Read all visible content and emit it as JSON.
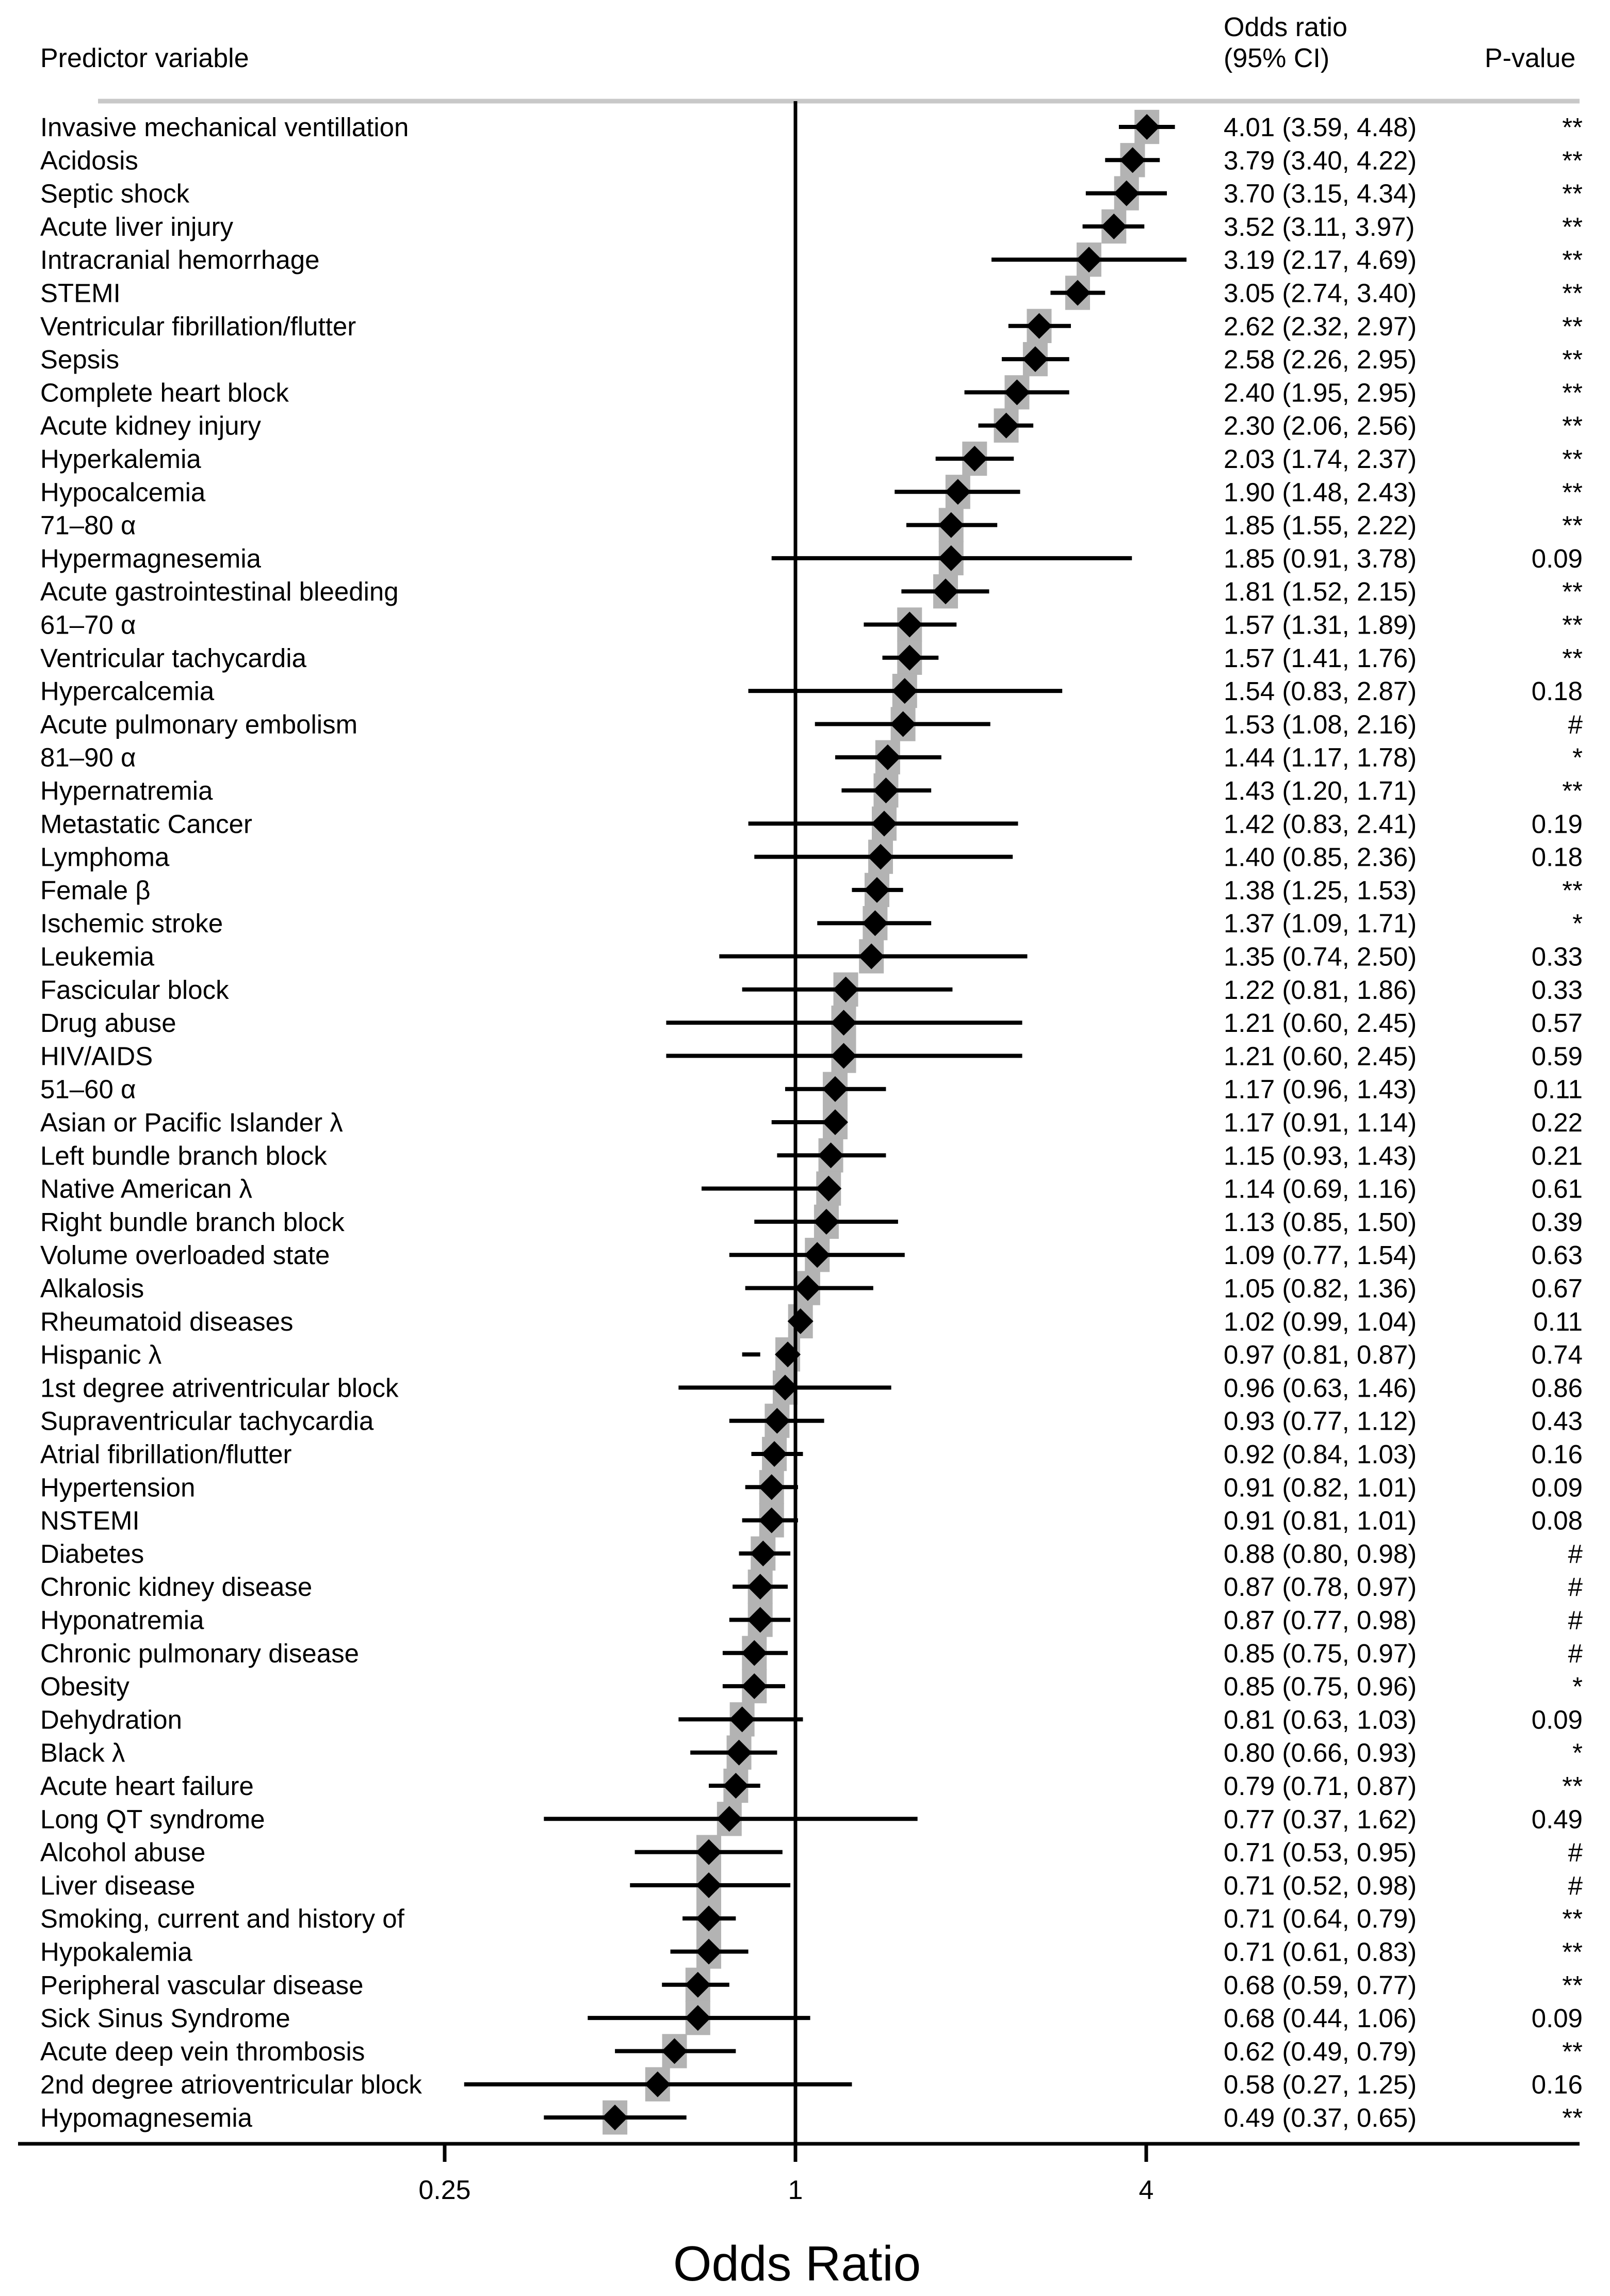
{
  "headers": {
    "predictor": "Predictor variable",
    "or_line1": "Odds ratio",
    "or_line2": "(95% CI)",
    "pvalue": "P-value"
  },
  "chart_data": {
    "type": "forest",
    "xlabel": "Odds Ratio",
    "x_scale": "log2",
    "xlim": [
      0.125,
      16
    ],
    "x_ticks": [
      0.25,
      1,
      4
    ],
    "x_tick_labels": [
      "0.25",
      "1",
      "4"
    ],
    "reference_line": 1,
    "colors": {
      "marker": "#000000",
      "ci_line": "#000000",
      "band": "#b3b3b3",
      "separator": "#c8c8c8"
    },
    "rows": [
      {
        "label": "Invasive mechanical ventillation",
        "or": 4.01,
        "lo": 3.59,
        "hi": 4.48,
        "ci_text": "4.01 (3.59, 4.48)",
        "p": "**"
      },
      {
        "label": "Acidosis",
        "or": 3.79,
        "lo": 3.4,
        "hi": 4.22,
        "ci_text": "3.79 (3.40, 4.22)",
        "p": "**"
      },
      {
        "label": "Septic shock",
        "or": 3.7,
        "lo": 3.15,
        "hi": 4.34,
        "ci_text": "3.70 (3.15, 4.34)",
        "p": "**"
      },
      {
        "label": "Acute liver injury",
        "or": 3.52,
        "lo": 3.11,
        "hi": 3.97,
        "ci_text": "3.52 (3.11, 3.97)",
        "p": "**"
      },
      {
        "label": "Intracranial hemorrhage",
        "or": 3.19,
        "lo": 2.17,
        "hi": 4.69,
        "ci_text": "3.19 (2.17, 4.69)",
        "p": "**"
      },
      {
        "label": "STEMI",
        "or": 3.05,
        "lo": 2.74,
        "hi": 3.4,
        "ci_text": "3.05 (2.74, 3.40)",
        "p": "**"
      },
      {
        "label": "Ventricular fibrillation/flutter",
        "or": 2.62,
        "lo": 2.32,
        "hi": 2.97,
        "ci_text": "2.62 (2.32, 2.97)",
        "p": "**"
      },
      {
        "label": "Sepsis",
        "or": 2.58,
        "lo": 2.26,
        "hi": 2.95,
        "ci_text": "2.58 (2.26, 2.95)",
        "p": "**"
      },
      {
        "label": "Complete heart block",
        "or": 2.4,
        "lo": 1.95,
        "hi": 2.95,
        "ci_text": "2.40 (1.95, 2.95)",
        "p": "**"
      },
      {
        "label": "Acute kidney injury",
        "or": 2.3,
        "lo": 2.06,
        "hi": 2.56,
        "ci_text": "2.30 (2.06, 2.56)",
        "p": "**"
      },
      {
        "label": "Hyperkalemia",
        "or": 2.03,
        "lo": 1.74,
        "hi": 2.37,
        "ci_text": "2.03 (1.74, 2.37)",
        "p": "**"
      },
      {
        "label": "Hypocalcemia",
        "or": 1.9,
        "lo": 1.48,
        "hi": 2.43,
        "ci_text": "1.90 (1.48, 2.43)",
        "p": "**"
      },
      {
        "label": "71–80 α",
        "or": 1.85,
        "lo": 1.55,
        "hi": 2.22,
        "ci_text": "1.85 (1.55, 2.22)",
        "p": "**"
      },
      {
        "label": "Hypermagnesemia",
        "or": 1.85,
        "lo": 0.91,
        "hi": 3.78,
        "ci_text": "1.85 (0.91, 3.78)",
        "p": "0.09"
      },
      {
        "label": "Acute gastrointestinal bleeding",
        "or": 1.81,
        "lo": 1.52,
        "hi": 2.15,
        "ci_text": "1.81 (1.52, 2.15)",
        "p": "**"
      },
      {
        "label": "61–70 α",
        "or": 1.57,
        "lo": 1.31,
        "hi": 1.89,
        "ci_text": "1.57 (1.31, 1.89)",
        "p": "**"
      },
      {
        "label": "Ventricular tachycardia",
        "or": 1.57,
        "lo": 1.41,
        "hi": 1.76,
        "ci_text": "1.57 (1.41, 1.76)",
        "p": "**"
      },
      {
        "label": "Hypercalcemia",
        "or": 1.54,
        "lo": 0.83,
        "hi": 2.87,
        "ci_text": "1.54 (0.83, 2.87)",
        "p": "0.18"
      },
      {
        "label": "Acute pulmonary embolism",
        "or": 1.53,
        "lo": 1.08,
        "hi": 2.16,
        "ci_text": "1.53 (1.08, 2.16)",
        "p": "#"
      },
      {
        "label": "81–90 α",
        "or": 1.44,
        "lo": 1.17,
        "hi": 1.78,
        "ci_text": "1.44 (1.17, 1.78)",
        "p": "*"
      },
      {
        "label": "Hypernatremia",
        "or": 1.43,
        "lo": 1.2,
        "hi": 1.71,
        "ci_text": "1.43 (1.20, 1.71)",
        "p": "**"
      },
      {
        "label": "Metastatic Cancer",
        "or": 1.42,
        "lo": 0.83,
        "hi": 2.41,
        "ci_text": "1.42 (0.83, 2.41)",
        "p": "0.19"
      },
      {
        "label": "Lymphoma",
        "or": 1.4,
        "lo": 0.85,
        "hi": 2.36,
        "ci_text": "1.40 (0.85, 2.36)",
        "p": "0.18"
      },
      {
        "label": "Female β",
        "or": 1.38,
        "lo": 1.25,
        "hi": 1.53,
        "ci_text": "1.38 (1.25, 1.53)",
        "p": "**"
      },
      {
        "label": "Ischemic stroke",
        "or": 1.37,
        "lo": 1.09,
        "hi": 1.71,
        "ci_text": "1.37 (1.09, 1.71)",
        "p": "*"
      },
      {
        "label": "Leukemia",
        "or": 1.35,
        "lo": 0.74,
        "hi": 2.5,
        "ci_text": "1.35 (0.74, 2.50)",
        "p": "0.33"
      },
      {
        "label": "Fascicular block",
        "or": 1.22,
        "lo": 0.81,
        "hi": 1.86,
        "ci_text": "1.22 (0.81, 1.86)",
        "p": "0.33"
      },
      {
        "label": "Drug abuse",
        "or": 1.21,
        "lo": 0.6,
        "hi": 2.45,
        "ci_text": "1.21 (0.60, 2.45)",
        "p": "0.57"
      },
      {
        "label": "HIV/AIDS",
        "or": 1.21,
        "lo": 0.6,
        "hi": 2.45,
        "ci_text": "1.21 (0.60, 2.45)",
        "p": "0.59"
      },
      {
        "label": "51–60 α",
        "or": 1.17,
        "lo": 0.96,
        "hi": 1.43,
        "ci_text": "1.17 (0.96, 1.43)",
        "p": "0.11"
      },
      {
        "label": "Asian or Pacific Islander  λ",
        "or": 1.17,
        "lo": 0.91,
        "hi": 1.14,
        "ci_text": "1.17 (0.91, 1.14)",
        "p": "0.22"
      },
      {
        "label": "Left bundle branch block",
        "or": 1.15,
        "lo": 0.93,
        "hi": 1.43,
        "ci_text": "1.15 (0.93, 1.43)",
        "p": "0.21"
      },
      {
        "label": "Native American  λ",
        "or": 1.14,
        "lo": 0.69,
        "hi": 1.16,
        "ci_text": "1.14 (0.69, 1.16)",
        "p": "0.61"
      },
      {
        "label": "Right bundle branch block",
        "or": 1.13,
        "lo": 0.85,
        "hi": 1.5,
        "ci_text": "1.13 (0.85, 1.50)",
        "p": "0.39"
      },
      {
        "label": "Volume overloaded state",
        "or": 1.09,
        "lo": 0.77,
        "hi": 1.54,
        "ci_text": "1.09 (0.77, 1.54)",
        "p": "0.63"
      },
      {
        "label": "Alkalosis",
        "or": 1.05,
        "lo": 0.82,
        "hi": 1.36,
        "ci_text": "1.05 (0.82, 1.36)",
        "p": "0.67"
      },
      {
        "label": "Rheumatoid diseases",
        "or": 1.02,
        "lo": 0.99,
        "hi": 1.04,
        "ci_text": "1.02 (0.99, 1.04)",
        "p": "0.11"
      },
      {
        "label": "Hispanic  λ",
        "or": 0.97,
        "lo": 0.81,
        "hi": 0.87,
        "ci_text": "0.97 (0.81, 0.87)",
        "p": "0.74"
      },
      {
        "label": "1st degree atriventricular  block",
        "or": 0.96,
        "lo": 0.63,
        "hi": 1.46,
        "ci_text": "0.96 (0.63, 1.46)",
        "p": "0.86"
      },
      {
        "label": "Supraventricular tachycardia",
        "or": 0.93,
        "lo": 0.77,
        "hi": 1.12,
        "ci_text": "0.93 (0.77, 1.12)",
        "p": "0.43"
      },
      {
        "label": "Atrial fibrillation/flutter",
        "or": 0.92,
        "lo": 0.84,
        "hi": 1.03,
        "ci_text": "0.92 (0.84, 1.03)",
        "p": "0.16"
      },
      {
        "label": "Hypertension",
        "or": 0.91,
        "lo": 0.82,
        "hi": 1.01,
        "ci_text": "0.91 (0.82, 1.01)",
        "p": "0.09"
      },
      {
        "label": "NSTEMI",
        "or": 0.91,
        "lo": 0.81,
        "hi": 1.01,
        "ci_text": "0.91 (0.81, 1.01)",
        "p": "0.08"
      },
      {
        "label": "Diabetes",
        "or": 0.88,
        "lo": 0.8,
        "hi": 0.98,
        "ci_text": "0.88 (0.80, 0.98)",
        "p": "#"
      },
      {
        "label": "Chronic kidney disease",
        "or": 0.87,
        "lo": 0.78,
        "hi": 0.97,
        "ci_text": "0.87 (0.78, 0.97)",
        "p": "#"
      },
      {
        "label": "Hyponatremia",
        "or": 0.87,
        "lo": 0.77,
        "hi": 0.98,
        "ci_text": "0.87 (0.77, 0.98)",
        "p": "#"
      },
      {
        "label": "Chronic pulmonary disease",
        "or": 0.85,
        "lo": 0.75,
        "hi": 0.97,
        "ci_text": "0.85 (0.75, 0.97)",
        "p": "#"
      },
      {
        "label": "Obesity",
        "or": 0.85,
        "lo": 0.75,
        "hi": 0.96,
        "ci_text": "0.85 (0.75, 0.96)",
        "p": "*"
      },
      {
        "label": "Dehydration",
        "or": 0.81,
        "lo": 0.63,
        "hi": 1.03,
        "ci_text": "0.81 (0.63, 1.03)",
        "p": "0.09"
      },
      {
        "label": "Black  λ",
        "or": 0.8,
        "lo": 0.66,
        "hi": 0.93,
        "ci_text": "0.80 (0.66, 0.93)",
        "p": "*"
      },
      {
        "label": "Acute heart failure",
        "or": 0.79,
        "lo": 0.71,
        "hi": 0.87,
        "ci_text": "0.79 (0.71, 0.87)",
        "p": "**"
      },
      {
        "label": "Long QT syndrome",
        "or": 0.77,
        "lo": 0.37,
        "hi": 1.62,
        "ci_text": "0.77 (0.37, 1.62)",
        "p": "0.49"
      },
      {
        "label": "Alcohol abuse",
        "or": 0.71,
        "lo": 0.53,
        "hi": 0.95,
        "ci_text": "0.71 (0.53, 0.95)",
        "p": "#"
      },
      {
        "label": "Liver disease",
        "or": 0.71,
        "lo": 0.52,
        "hi": 0.98,
        "ci_text": "0.71 (0.52, 0.98)",
        "p": "#"
      },
      {
        "label": "Smoking, current and history of",
        "or": 0.71,
        "lo": 0.64,
        "hi": 0.79,
        "ci_text": "0.71 (0.64, 0.79)",
        "p": "**"
      },
      {
        "label": "Hypokalemia",
        "or": 0.71,
        "lo": 0.61,
        "hi": 0.83,
        "ci_text": "0.71 (0.61, 0.83)",
        "p": "**"
      },
      {
        "label": "Peripheral vascular disease",
        "or": 0.68,
        "lo": 0.59,
        "hi": 0.77,
        "ci_text": "0.68 (0.59, 0.77)",
        "p": "**"
      },
      {
        "label": "Sick Sinus Syndrome",
        "or": 0.68,
        "lo": 0.44,
        "hi": 1.06,
        "ci_text": "0.68 (0.44, 1.06)",
        "p": "0.09"
      },
      {
        "label": "Acute deep vein thrombosis",
        "or": 0.62,
        "lo": 0.49,
        "hi": 0.79,
        "ci_text": "0.62 (0.49, 0.79)",
        "p": "**"
      },
      {
        "label": "2nd degree atrioventricular block",
        "or": 0.58,
        "lo": 0.27,
        "hi": 1.25,
        "ci_text": "0.58 (0.27, 1.25)",
        "p": "0.16"
      },
      {
        "label": "Hypomagnesemia",
        "or": 0.49,
        "lo": 0.37,
        "hi": 0.65,
        "ci_text": "0.49 (0.37, 0.65)",
        "p": "**"
      }
    ]
  }
}
